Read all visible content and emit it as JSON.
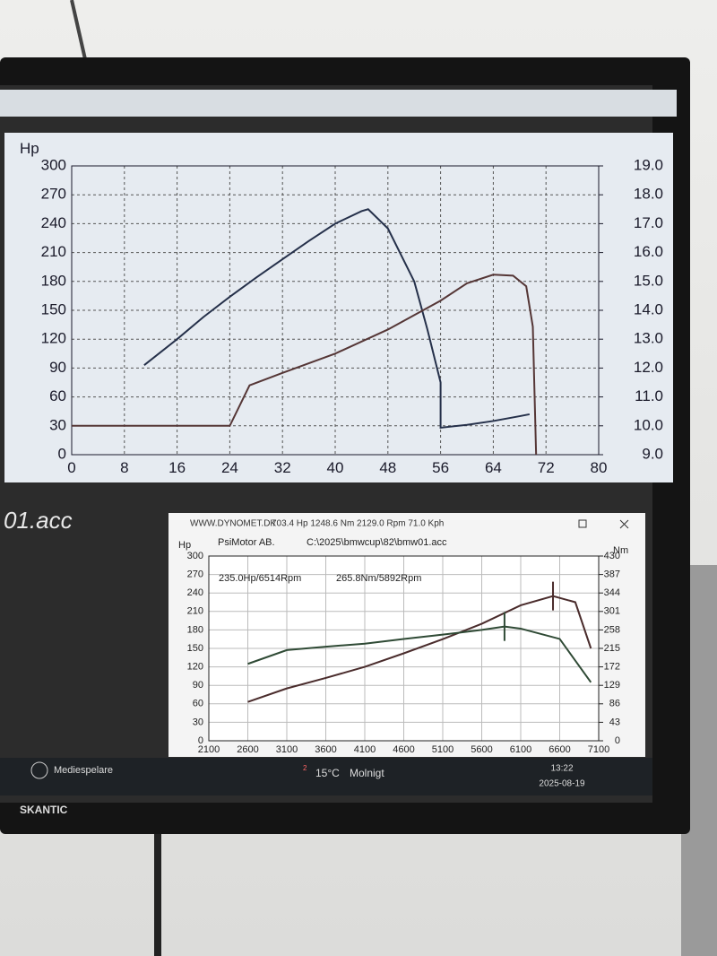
{
  "monitor": {
    "brand": "SKANTIC"
  },
  "background_text": "01.acc",
  "window": {
    "site": "WWW.DYNOMET.DK",
    "status": "703.4 Hp 1248.6 Nm 2129.0 Rpm 71.0 Kph",
    "company": "PsiMotor AB.",
    "file": "C:\\2025\\bmwcup\\82\\bmw01.acc",
    "peak_hp": "235.0Hp/6514Rpm",
    "peak_nm": "265.8Nm/5892Rpm"
  },
  "taskbar": {
    "media": "Mediespelare",
    "weather_badge": "2",
    "temperature": "15°C",
    "condition": "Molnigt",
    "time": "13:22",
    "date": "2025-08-19"
  },
  "chart_data": [
    {
      "type": "line",
      "y_label": "Hp",
      "grid": true,
      "xlim": [
        0,
        80
      ],
      "xticks": [
        0,
        8,
        16,
        24,
        32,
        40,
        48,
        56,
        64,
        72,
        80
      ],
      "ylim": [
        0,
        300
      ],
      "yticks": [
        0,
        30,
        60,
        90,
        120,
        150,
        180,
        210,
        240,
        270,
        300
      ],
      "y2lim": [
        9,
        19
      ],
      "y2ticks": [
        {
          "value": 9,
          "label": "9.0"
        },
        {
          "value": 10,
          "label": "10.0"
        },
        {
          "value": 11,
          "label": "11.0"
        },
        {
          "value": 12,
          "label": "12.0"
        },
        {
          "value": 13,
          "label": "13.0"
        },
        {
          "value": 14,
          "label": "14.0"
        },
        {
          "value": 15,
          "label": "15.0"
        },
        {
          "value": 16,
          "label": "16.0"
        },
        {
          "value": 17,
          "label": "17.0"
        },
        {
          "value": 18,
          "label": "18.0"
        },
        {
          "value": 19,
          "label": "19.0"
        }
      ],
      "series": [
        {
          "color": "#25304a",
          "x": [
            11,
            16,
            20,
            24,
            28,
            32,
            36,
            40,
            44,
            45,
            48,
            52,
            54,
            56,
            56,
            60,
            64,
            68,
            69.5
          ],
          "values": [
            93,
            120,
            143,
            164,
            184,
            203,
            222,
            240,
            253,
            255,
            235,
            180,
            130,
            75,
            28,
            31,
            35,
            40,
            42
          ]
        },
        {
          "color": "#553636",
          "x": [
            0,
            24,
            27,
            32,
            40,
            48,
            56,
            60,
            64,
            67,
            69,
            70,
            70.5
          ],
          "values": [
            30,
            30,
            72,
            85,
            105,
            130,
            160,
            178,
            187,
            186,
            175,
            133,
            0
          ]
        }
      ]
    },
    {
      "type": "line",
      "y_label": "Hp",
      "y2_label": "Nm",
      "grid": true,
      "xlim": [
        2100,
        7100
      ],
      "xticks": [
        2100,
        2600,
        3100,
        3600,
        4100,
        4600,
        5100,
        5600,
        6100,
        6600,
        7100
      ],
      "ylim": [
        0,
        300
      ],
      "yticks": [
        0,
        30,
        60,
        90,
        120,
        150,
        180,
        210,
        240,
        270,
        300
      ],
      "y2lim": [
        0,
        430
      ],
      "y2ticks": [
        0,
        43,
        86,
        129,
        172,
        215,
        258,
        301,
        344,
        387,
        430
      ],
      "series": [
        {
          "color": "#4a2c2c",
          "x": [
            2600,
            3100,
            3600,
            4100,
            4600,
            5100,
            5600,
            6100,
            6514,
            6800,
            7000
          ],
          "values": [
            63,
            85,
            102,
            120,
            142,
            165,
            190,
            220,
            235,
            225,
            150
          ]
        },
        {
          "color": "#2f4a35",
          "axis": "y2",
          "x": [
            2600,
            3100,
            3600,
            4100,
            4600,
            5100,
            5600,
            5892,
            6100,
            6600,
            7000
          ],
          "values": [
            179,
            211,
            219,
            226,
            237,
            247,
            258,
            265.8,
            261,
            237,
            136
          ]
        }
      ]
    }
  ]
}
